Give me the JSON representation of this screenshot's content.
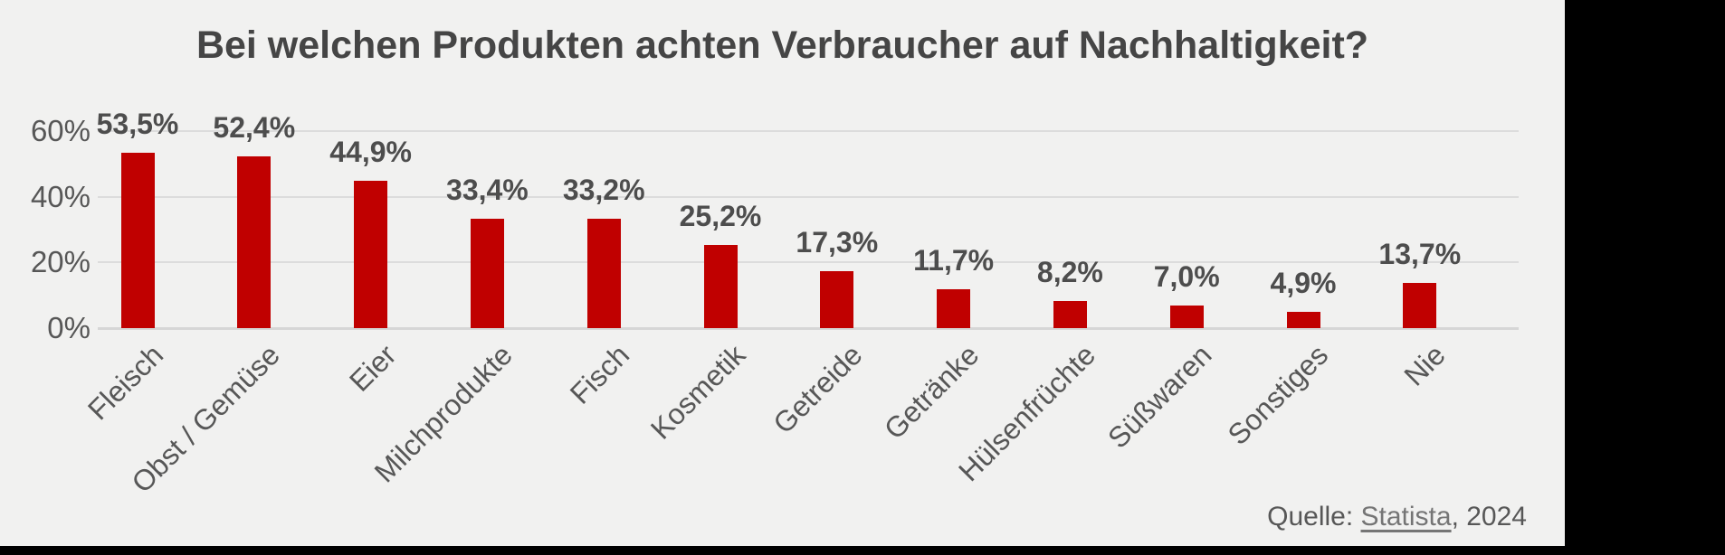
{
  "title": "Bei welchen Produkten achten Verbraucher auf Nachhaltigkeit?",
  "source": {
    "prefix": "Quelle: ",
    "link_text": "Statista",
    "suffix": ", 2024"
  },
  "colors": {
    "bar": "#c00000",
    "canvas_background": "#f1f1f0",
    "frame_fill": "#000000",
    "gridline": "#dcdcdc",
    "text": "#575757",
    "title_text": "#454545",
    "link_text_color": "#757575"
  },
  "chart_data": {
    "type": "bar",
    "title": "Bei welchen Produkten achten Verbraucher auf Nachhaltigkeit?",
    "categories": [
      "Fleisch",
      "Obst / Gemüse",
      "Eier",
      "Milchprodukte",
      "Fisch",
      "Kosmetik",
      "Getreide",
      "Getränke",
      "Hülsenfrüchte",
      "Süßwaren",
      "Sonstiges",
      "Nie"
    ],
    "values": [
      53.5,
      52.4,
      44.9,
      33.4,
      33.2,
      25.2,
      17.3,
      11.7,
      8.2,
      7.0,
      4.9,
      13.7
    ],
    "value_labels": [
      "53,5%",
      "52,4%",
      "44,9%",
      "33,4%",
      "33,2%",
      "25,2%",
      "17,3%",
      "11,7%",
      "8,2%",
      "7,0%",
      "4,9%",
      "13,7%"
    ],
    "xlabel": "",
    "ylabel": "",
    "ylim": [
      0,
      60
    ],
    "yticks": [
      {
        "value": 0,
        "label": "0%"
      },
      {
        "value": 20,
        "label": "20%"
      },
      {
        "value": 40,
        "label": "40%"
      },
      {
        "value": 60,
        "label": "60%"
      }
    ],
    "grid": true,
    "legend": false,
    "bar_color": "#c00000",
    "value_label_position": "outside-end",
    "category_label_rotation_deg": 45
  }
}
